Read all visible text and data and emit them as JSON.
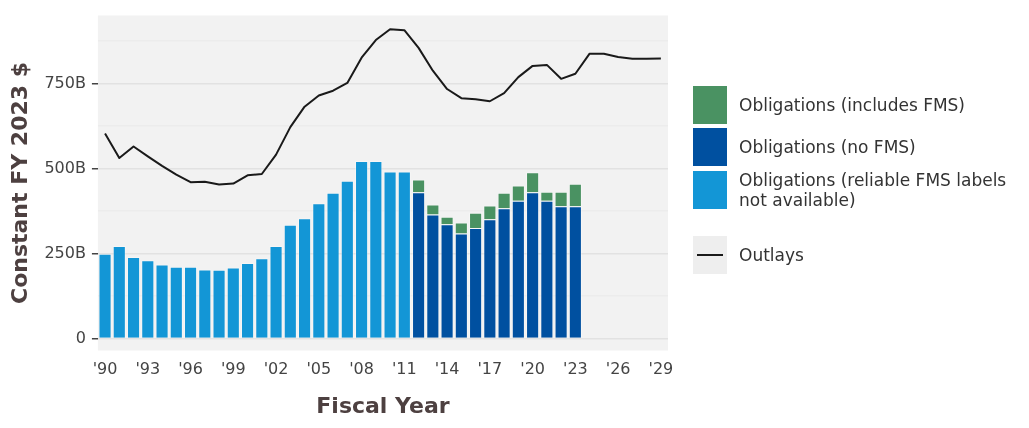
{
  "chart_data": {
    "type": "bar",
    "xlabel": "Fiscal Year",
    "ylabel": "Constant FY 2023 $",
    "categories": [
      "'90",
      null,
      null,
      "'93",
      null,
      null,
      "'96",
      null,
      null,
      "'99",
      null,
      null,
      "'02",
      null,
      null,
      "'05",
      null,
      null,
      "'08",
      null,
      null,
      "'11",
      null,
      null,
      "'14",
      null,
      null,
      "'17",
      null,
      null,
      "'20",
      null,
      null,
      "'23",
      null,
      null,
      "'26",
      null,
      null,
      "'29"
    ],
    "stacked": true,
    "series": [
      {
        "name": "Obligations (reliable FMS labels not available)",
        "color": "#1396d6",
        "values": [
          249,
          272,
          240,
          230,
          218,
          211,
          211,
          203,
          202,
          209,
          222,
          236,
          272,
          335,
          354,
          398,
          429,
          464,
          522,
          522,
          491,
          491,
          null,
          null,
          null,
          null,
          null,
          null,
          null,
          null,
          null,
          null,
          null,
          null,
          null,
          null,
          null,
          null,
          null,
          null
        ]
      },
      {
        "name": "Obligations (no FMS)",
        "color": "#0050a0",
        "values": [
          null,
          null,
          null,
          null,
          null,
          null,
          null,
          null,
          null,
          null,
          null,
          null,
          null,
          null,
          null,
          null,
          null,
          null,
          null,
          null,
          null,
          null,
          430,
          365,
          336,
          309,
          325,
          351,
          383,
          405,
          430,
          405,
          389,
          389,
          null,
          null,
          null,
          null,
          null,
          null
        ]
      },
      {
        "name": "Obligations (includes FMS)",
        "color": "#4a9262",
        "values": [
          null,
          null,
          null,
          null,
          null,
          null,
          null,
          null,
          null,
          null,
          null,
          null,
          null,
          null,
          null,
          null,
          null,
          null,
          null,
          null,
          null,
          null,
          38,
          29,
          22,
          32,
          45,
          40,
          46,
          45,
          59,
          27,
          43,
          66,
          null,
          null,
          null,
          null,
          null,
          null
        ]
      },
      {
        "name": "Outlays",
        "type": "line",
        "color": "#1a1a1a",
        "values": [
          603,
          531,
          565,
          536,
          508,
          482,
          460,
          461,
          453,
          456,
          480,
          484,
          541,
          622,
          682,
          715,
          729,
          752,
          826,
          878,
          910,
          907,
          855,
          788,
          734,
          707,
          704,
          698,
          722,
          769,
          802,
          805,
          764,
          779,
          838,
          838,
          828,
          823,
          823,
          824
        ]
      }
    ],
    "ylim": [
      -35,
      950
    ],
    "yticks": [
      0,
      {
        "value": 125,
        "label": null
      },
      {
        "value": 250,
        "label": "250B"
      },
      {
        "value": 375,
        "label": null
      },
      {
        "value": 500,
        "label": "500B"
      },
      {
        "value": 625,
        "label": null
      },
      {
        "value": 750,
        "label": "750B"
      },
      {
        "value": 875,
        "label": null
      }
    ],
    "grid": "y",
    "legend": "right",
    "marker": "none"
  }
}
